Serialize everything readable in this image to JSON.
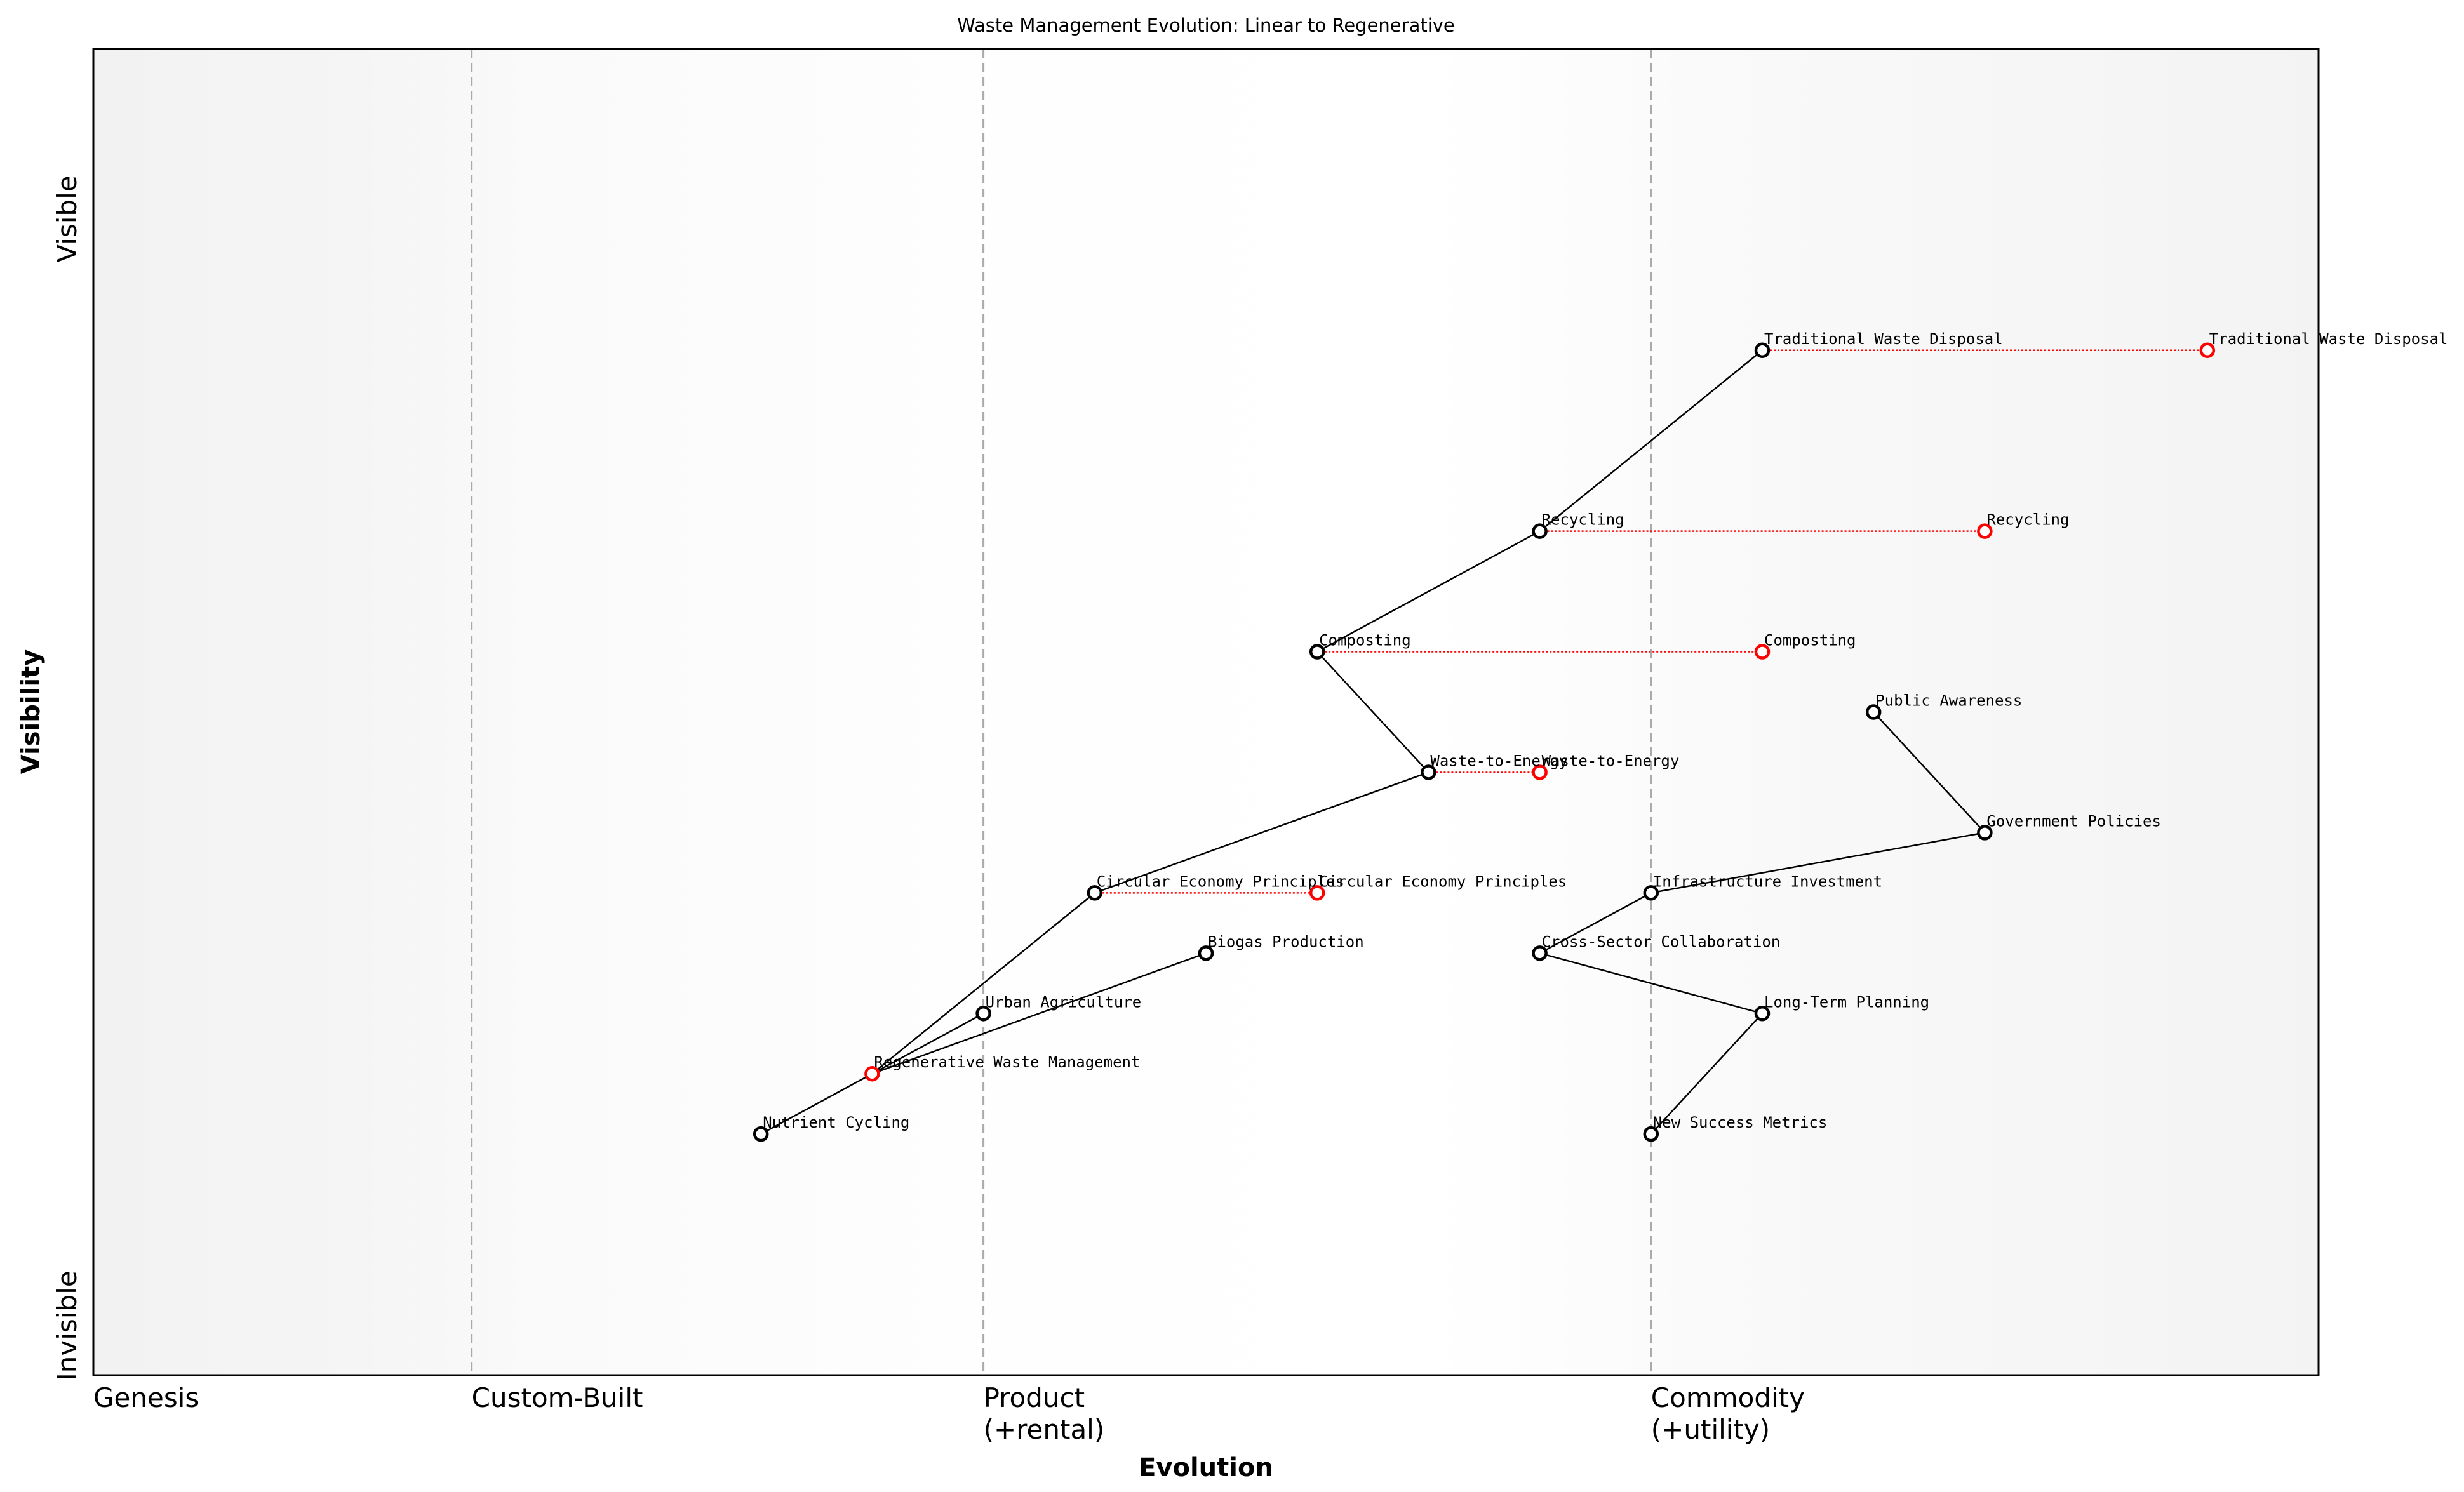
{
  "chart_data": {
    "type": "wardley-map",
    "title": "Waste Management Evolution: Linear to Regenerative",
    "xlabel": "Evolution",
    "ylabel": "Visibility",
    "xlim": [
      0,
      1
    ],
    "ylim": [
      0,
      1.1
    ],
    "stages": [
      {
        "label": "Genesis",
        "x": 0
      },
      {
        "label": "Custom-Built",
        "x": 0.17
      },
      {
        "label": "Product\n(+rental)",
        "x": 0.4
      },
      {
        "label": "Commodity\n(+utility)",
        "x": 0.7
      }
    ],
    "y_labels": {
      "top": "Visible",
      "bottom": "Invisible"
    },
    "colors": {
      "component": "#000000",
      "anchor": "#ff0000",
      "evolution": "#ff0000",
      "stage_line": "#aaaaaa"
    },
    "components": [
      {
        "name": "Traditional Waste Disposal",
        "x": 0.75,
        "y": 0.85
      },
      {
        "name": "Recycling",
        "x": 0.65,
        "y": 0.7
      },
      {
        "name": "Composting",
        "x": 0.55,
        "y": 0.6
      },
      {
        "name": "Waste-to-Energy",
        "x": 0.6,
        "y": 0.5
      },
      {
        "name": "Circular Economy Principles",
        "x": 0.45,
        "y": 0.4
      },
      {
        "name": "Biogas Production",
        "x": 0.5,
        "y": 0.35
      },
      {
        "name": "Urban Agriculture",
        "x": 0.4,
        "y": 0.3
      },
      {
        "name": "Regenerative Waste Management",
        "x": 0.35,
        "y": 0.25,
        "highlight": true
      },
      {
        "name": "Nutrient Cycling",
        "x": 0.3,
        "y": 0.2
      },
      {
        "name": "Public Awareness",
        "x": 0.8,
        "y": 0.55
      },
      {
        "name": "Government Policies",
        "x": 0.85,
        "y": 0.45
      },
      {
        "name": "Infrastructure Investment",
        "x": 0.7,
        "y": 0.4
      },
      {
        "name": "Cross-Sector Collaboration",
        "x": 0.65,
        "y": 0.35
      },
      {
        "name": "Long-Term Planning",
        "x": 0.75,
        "y": 0.3
      },
      {
        "name": "New Success Metrics",
        "x": 0.7,
        "y": 0.2
      }
    ],
    "links": [
      [
        "Traditional Waste Disposal",
        "Recycling"
      ],
      [
        "Recycling",
        "Composting"
      ],
      [
        "Composting",
        "Waste-to-Energy"
      ],
      [
        "Waste-to-Energy",
        "Circular Economy Principles"
      ],
      [
        "Circular Economy Principles",
        "Regenerative Waste Management"
      ],
      [
        "Regenerative Waste Management",
        "Urban Agriculture"
      ],
      [
        "Regenerative Waste Management",
        "Biogas Production"
      ],
      [
        "Regenerative Waste Management",
        "Nutrient Cycling"
      ],
      [
        "Public Awareness",
        "Government Policies"
      ],
      [
        "Government Policies",
        "Infrastructure Investment"
      ],
      [
        "Infrastructure Investment",
        "Cross-Sector Collaboration"
      ],
      [
        "Cross-Sector Collaboration",
        "Long-Term Planning"
      ],
      [
        "Long-Term Planning",
        "New Success Metrics"
      ]
    ],
    "evolutions": [
      {
        "name": "Traditional Waste Disposal",
        "from_x": 0.75,
        "to_x": 0.95,
        "y": 0.85
      },
      {
        "name": "Recycling",
        "from_x": 0.65,
        "to_x": 0.85,
        "y": 0.7
      },
      {
        "name": "Composting",
        "from_x": 0.55,
        "to_x": 0.75,
        "y": 0.6
      },
      {
        "name": "Waste-to-Energy",
        "from_x": 0.6,
        "to_x": 0.65,
        "y": 0.5
      },
      {
        "name": "Circular Economy Principles",
        "from_x": 0.45,
        "to_x": 0.55,
        "y": 0.4
      }
    ]
  }
}
